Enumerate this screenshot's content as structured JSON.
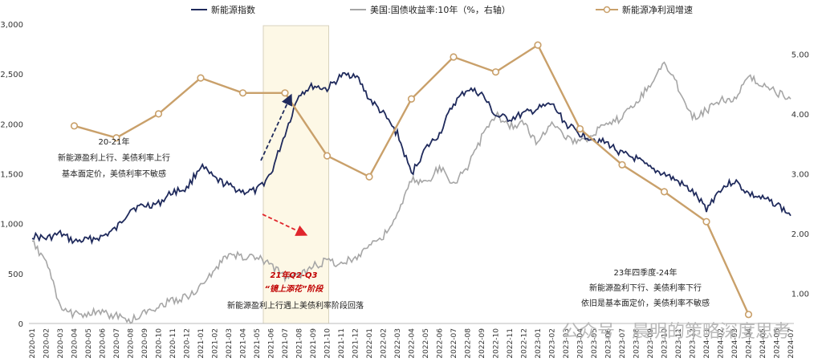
{
  "chart_data": {
    "type": "line",
    "legend_position": "top",
    "colors": {
      "nev_index": "#1f2a5c",
      "us_10y": "#a6a6a6",
      "nev_profit": "#c9a06a",
      "highlight_fill": "#fdf8e6",
      "red_arrow": "#e0262d",
      "blue_arrow": "#1f2a5c"
    },
    "y_left": {
      "ticks": [
        "0",
        "500",
        "1,000",
        "1,500",
        "2,000",
        "2,500",
        "3,000"
      ],
      "range": [
        0,
        3000
      ]
    },
    "y_right": {
      "ticks": [
        "1.00",
        "2.00",
        "3.00",
        "4.00",
        "5.00"
      ],
      "range": [
        0.5,
        5.5
      ]
    },
    "x_categories": [
      "2020-01",
      "2020-02",
      "2020-03",
      "2020-04",
      "2020-05",
      "2020-06",
      "2020-07",
      "2020-08",
      "2020-09",
      "2020-10",
      "2020-11",
      "2020-12",
      "2021-01",
      "2021-02",
      "2021-03",
      "2021-04",
      "2021-05",
      "2021-06",
      "2021-07",
      "2021-08",
      "2021-09",
      "2021-10",
      "2021-11",
      "2021-12",
      "2022-01",
      "2022-02",
      "2022-03",
      "2022-04",
      "2022-05",
      "2022-06",
      "2022-07",
      "2022-08",
      "2022-09",
      "2022-10",
      "2022-11",
      "2022-12",
      "2023-01",
      "2023-02",
      "2023-03",
      "2023-04",
      "2023-05",
      "2023-06",
      "2023-07",
      "2023-08",
      "2023-09",
      "2023-10",
      "2023-11",
      "2023-12",
      "2024-01",
      "2024-02",
      "2024-03",
      "2024-04",
      "2024-05",
      "2024-06",
      "2024-07"
    ],
    "series": [
      {
        "name": "新能源指数",
        "axis": "left",
        "values": [
          880,
          850,
          900,
          820,
          840,
          870,
          950,
          1150,
          1180,
          1200,
          1320,
          1350,
          1580,
          1450,
          1380,
          1320,
          1330,
          1500,
          1900,
          2300,
          2380,
          2350,
          2480,
          2500,
          2250,
          2100,
          1900,
          1500,
          1750,
          1900,
          2200,
          2350,
          2300,
          2080,
          2050,
          2100,
          2150,
          2200,
          2000,
          1900,
          1850,
          1800,
          1700,
          1650,
          1550,
          1500,
          1420,
          1320,
          1150,
          1350,
          1430,
          1300,
          1250,
          1200,
          1080
        ]
      },
      {
        "name": "美国:国债收益率:10年（%，右轴）",
        "axis": "right",
        "values": [
          1.85,
          1.55,
          0.75,
          0.65,
          0.68,
          0.68,
          0.62,
          0.55,
          0.68,
          0.8,
          0.88,
          0.95,
          1.1,
          1.4,
          1.65,
          1.62,
          1.6,
          1.48,
          1.28,
          1.3,
          1.45,
          1.55,
          1.5,
          1.6,
          1.82,
          1.95,
          2.3,
          2.9,
          2.85,
          3.1,
          2.85,
          3.1,
          3.6,
          4.0,
          3.8,
          3.85,
          3.5,
          3.9,
          3.6,
          3.5,
          3.7,
          3.8,
          3.95,
          4.2,
          4.5,
          4.85,
          4.45,
          3.95,
          4.05,
          4.25,
          4.25,
          4.6,
          4.5,
          4.35,
          4.25
        ]
      },
      {
        "name": "新能源净利润增速",
        "axis": "right",
        "x": [
          "2020-04",
          "2020-07",
          "2020-10",
          "2021-01",
          "2021-04",
          "2021-07",
          "2021-10",
          "2022-01",
          "2022-04",
          "2022-07",
          "2022-10",
          "2023-01",
          "2023-04",
          "2023-07",
          "2023-10",
          "2024-01",
          "2024-04"
        ],
        "values": [
          3.8,
          3.6,
          4.0,
          4.6,
          4.35,
          4.35,
          3.3,
          2.95,
          4.25,
          4.95,
          4.7,
          5.15,
          3.75,
          3.15,
          2.7,
          2.2,
          0.65
        ]
      }
    ],
    "annotations": {
      "left_box": [
        "20-21年",
        "新能源盈利上行、美债利率上行",
        "基本面定价，美债利率不敏感"
      ],
      "highlight_title": "21年Q2-Q3",
      "highlight_subtitle": "“镜上添花”阶段",
      "highlight_desc": "新能源盈利上行遇上美债利率阶段回落",
      "right_box": [
        "23年四季度-24年",
        "新能源盈利下行、美债利率下行",
        "依旧是基本面定价，美债利率不敏感"
      ]
    },
    "highlight_range": [
      "2021-05",
      "2021-10"
    ],
    "watermark": "公众号 · 晨明的策略深度思考"
  }
}
